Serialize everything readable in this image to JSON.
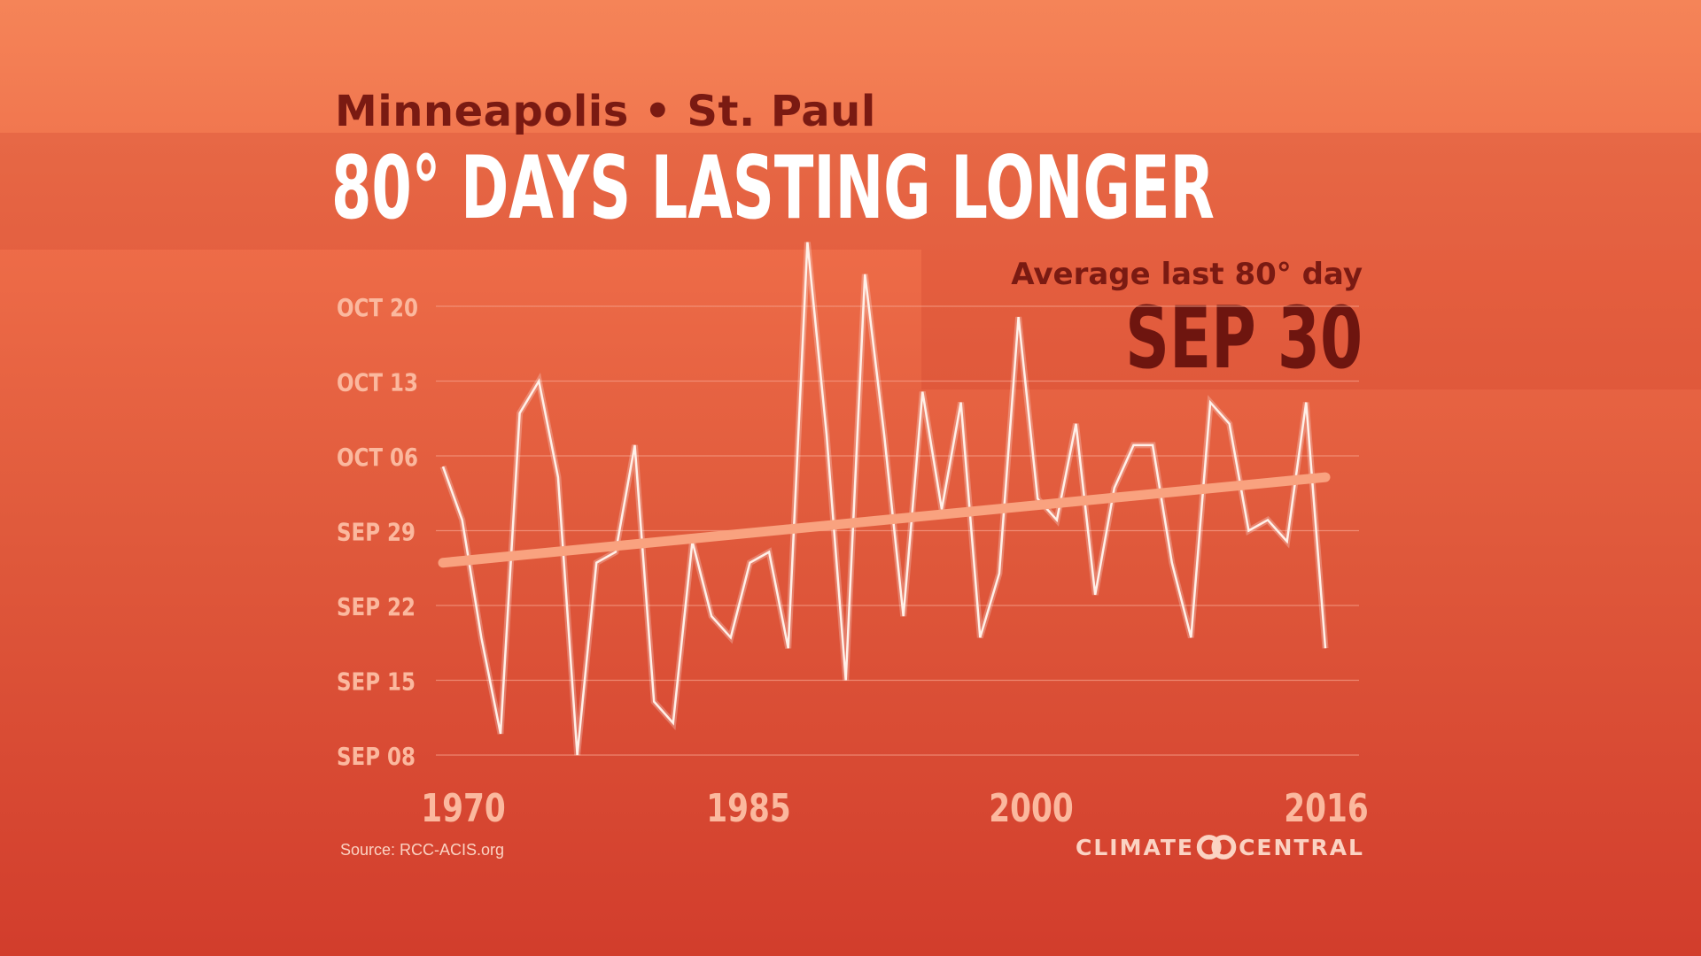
{
  "header": {
    "subtitle": "Minneapolis • St. Paul",
    "title": "80° DAYS LASTING LONGER"
  },
  "callout": {
    "label": "Average last 80° day",
    "value": "SEP 30"
  },
  "footer": {
    "source": "Source: RCC-ACIS.org",
    "logo_left": "CLIMATE",
    "logo_right": "CENTRAL"
  },
  "colors": {
    "line": "#fff0e8",
    "trend": "#f9a27f",
    "grid": "#f7a08a",
    "tick": "#fbb89e"
  },
  "chart_data": {
    "type": "line",
    "title": "80° DAYS LASTING LONGER",
    "xlabel": "",
    "ylabel": "",
    "xlim": [
      1970,
      2016
    ],
    "ylim": [
      "SEP 08",
      "OCT 26"
    ],
    "y_ticks": [
      "SEP 08",
      "SEP 15",
      "SEP 22",
      "SEP 29",
      "OCT 06",
      "OCT 13",
      "OCT 20"
    ],
    "x_ticks": [
      "1970",
      "1985",
      "2000",
      "2016"
    ],
    "x": [
      1970,
      1971,
      1972,
      1973,
      1974,
      1975,
      1976,
      1977,
      1978,
      1979,
      1980,
      1981,
      1982,
      1983,
      1984,
      1985,
      1986,
      1987,
      1988,
      1989,
      1990,
      1991,
      1992,
      1993,
      1994,
      1995,
      1996,
      1997,
      1998,
      1999,
      2000,
      2001,
      2002,
      2003,
      2004,
      2005,
      2006,
      2007,
      2008,
      2009,
      2010,
      2011,
      2012,
      2013,
      2014,
      2015,
      2016
    ],
    "series": [
      {
        "values": [
          "OCT 05",
          "SEP 30",
          "SEP 19",
          "SEP 10",
          "OCT 10",
          "OCT 13",
          "OCT 04",
          "SEP 08",
          "SEP 26",
          "SEP 27",
          "OCT 07",
          "SEP 13",
          "SEP 11",
          "SEP 28",
          "SEP 21",
          "SEP 19",
          "SEP 26",
          "SEP 27",
          "SEP 18",
          "OCT 26",
          "OCT 08",
          "SEP 15",
          "OCT 23",
          "OCT 08",
          "SEP 21",
          "OCT 12",
          "OCT 01",
          "OCT 11",
          "SEP 19",
          "SEP 25",
          "OCT 19",
          "OCT 02",
          "SEP 30",
          "OCT 09",
          "SEP 23",
          "OCT 03",
          "OCT 07",
          "OCT 07",
          "SEP 26",
          "SEP 19",
          "OCT 11",
          "OCT 09",
          "SEP 29",
          "SEP 30",
          "SEP 28",
          "OCT 11",
          "SEP 18"
        ]
      }
    ],
    "trend": {
      "from": [
        1970,
        "SEP 26"
      ],
      "to": [
        2016,
        "OCT 04"
      ]
    },
    "grid": true
  }
}
